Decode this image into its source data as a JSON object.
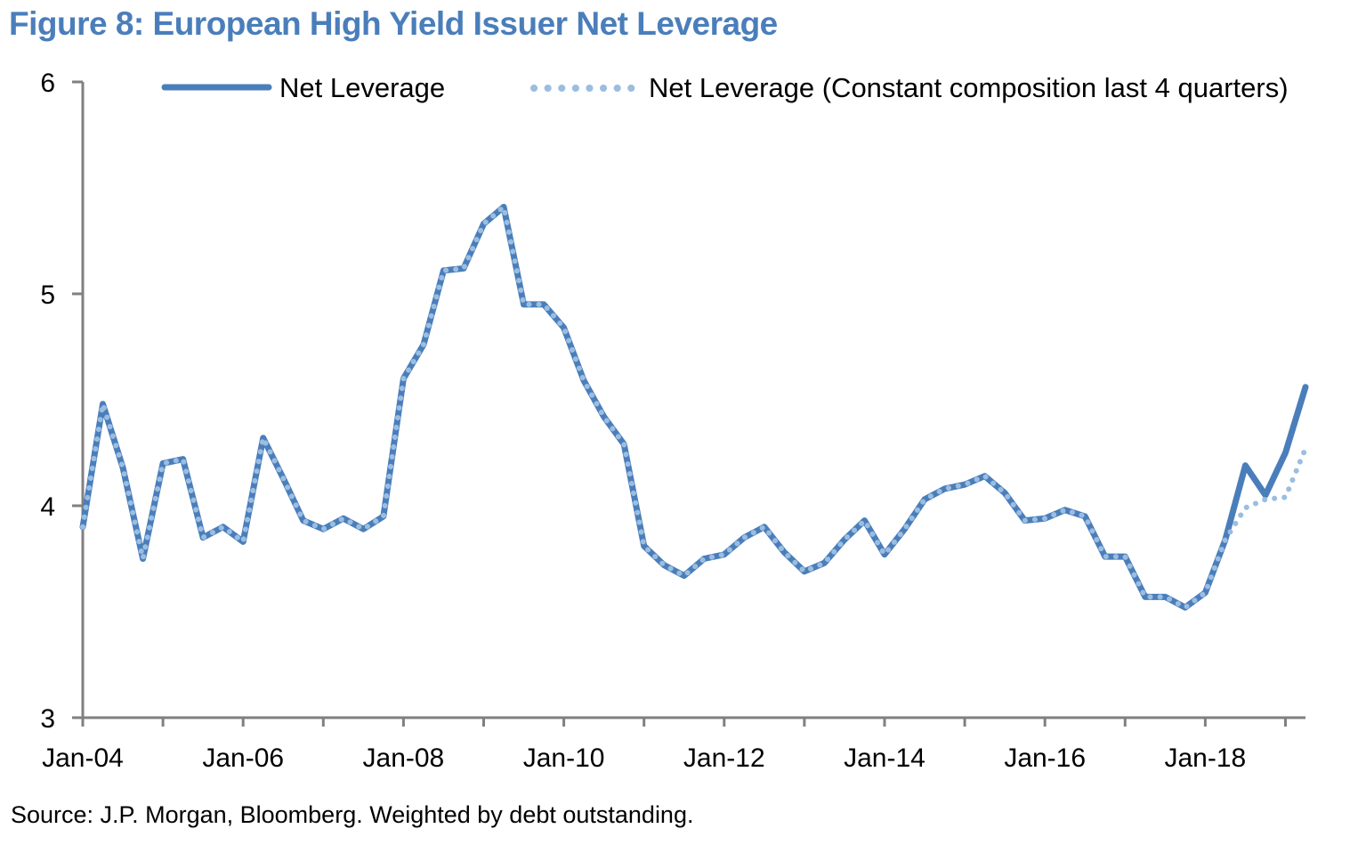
{
  "title": "Figure 8: European High Yield Issuer Net Leverage",
  "source": "Source: J.P. Morgan, Bloomberg.  Weighted by debt outstanding.",
  "colors": {
    "title": "#4a7ebb",
    "series_solid": "#4a7ebb",
    "series_dotted": "#9bbde0",
    "axis": "#808080"
  },
  "chart_data": {
    "type": "line",
    "title": "Figure 8: European High Yield Issuer Net Leverage",
    "xlabel": "",
    "ylabel": "",
    "ylim": [
      3,
      6
    ],
    "yticks": [
      3,
      4,
      5,
      6
    ],
    "xlim": [
      2004.0,
      2019.25
    ],
    "xticks": [
      {
        "label": "Jan-04",
        "value": 2004
      },
      {
        "label": "Jan-06",
        "value": 2006
      },
      {
        "label": "Jan-08",
        "value": 2008
      },
      {
        "label": "Jan-10",
        "value": 2010
      },
      {
        "label": "Jan-12",
        "value": 2012
      },
      {
        "label": "Jan-14",
        "value": 2014
      },
      {
        "label": "Jan-16",
        "value": 2016
      },
      {
        "label": "Jan-18",
        "value": 2018
      }
    ],
    "legend_position": "top",
    "x_start": 2004.0,
    "x_step": 0.25,
    "series": [
      {
        "name": "Net Leverage",
        "style": "solid",
        "values": [
          3.9,
          4.48,
          4.18,
          3.75,
          4.2,
          4.22,
          3.85,
          3.9,
          3.83,
          4.32,
          4.13,
          3.93,
          3.89,
          3.94,
          3.89,
          3.95,
          4.6,
          4.76,
          5.11,
          5.12,
          5.33,
          5.41,
          4.95,
          4.95,
          4.84,
          4.59,
          4.42,
          4.29,
          3.81,
          3.72,
          3.67,
          3.75,
          3.77,
          3.85,
          3.9,
          3.78,
          3.69,
          3.73,
          3.84,
          3.93,
          3.77,
          3.89,
          4.03,
          4.08,
          4.1,
          4.14,
          4.06,
          3.93,
          3.94,
          3.98,
          3.95,
          3.76,
          3.76,
          3.57,
          3.57,
          3.52,
          3.59,
          3.84,
          4.19,
          4.05,
          4.25,
          4.56
        ]
      },
      {
        "name": "Net Leverage (Constant composition last 4 quarters)",
        "style": "dotted",
        "values": [
          3.9,
          4.48,
          4.18,
          3.75,
          4.2,
          4.22,
          3.85,
          3.9,
          3.83,
          4.32,
          4.13,
          3.93,
          3.89,
          3.94,
          3.89,
          3.95,
          4.6,
          4.76,
          5.11,
          5.12,
          5.33,
          5.41,
          4.95,
          4.95,
          4.84,
          4.59,
          4.42,
          4.29,
          3.81,
          3.72,
          3.67,
          3.75,
          3.77,
          3.85,
          3.9,
          3.78,
          3.69,
          3.73,
          3.84,
          3.93,
          3.77,
          3.89,
          4.03,
          4.08,
          4.1,
          4.14,
          4.06,
          3.93,
          3.94,
          3.98,
          3.95,
          3.76,
          3.76,
          3.57,
          3.57,
          3.52,
          3.59,
          3.84,
          3.99,
          4.03,
          4.04,
          4.27
        ]
      }
    ]
  }
}
